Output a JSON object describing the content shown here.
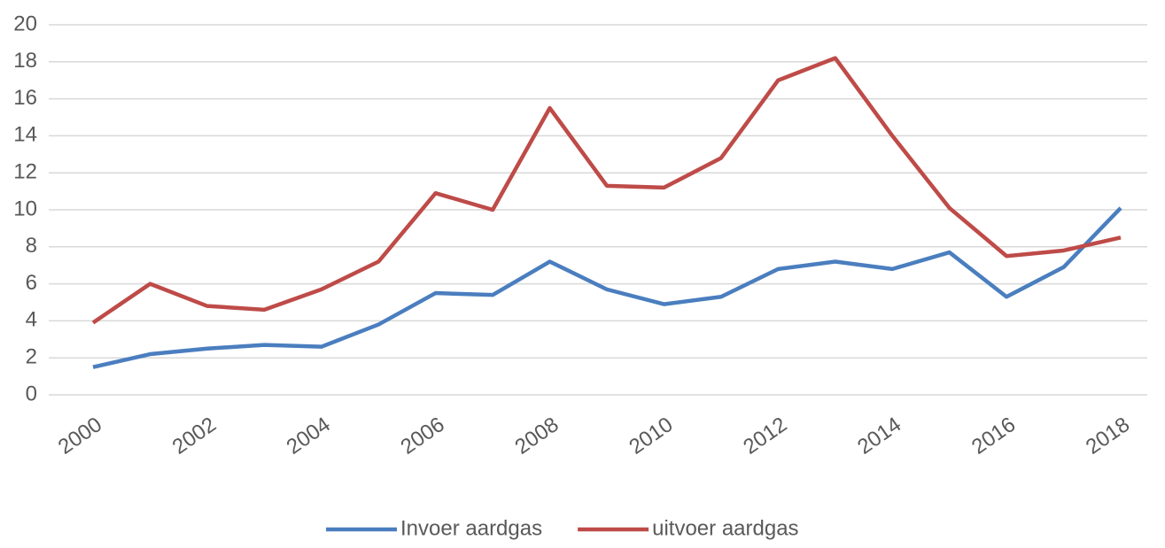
{
  "chart_data": {
    "type": "line",
    "x": [
      2000,
      2001,
      2002,
      2003,
      2004,
      2005,
      2006,
      2007,
      2008,
      2009,
      2010,
      2011,
      2012,
      2013,
      2014,
      2015,
      2016,
      2017,
      2018
    ],
    "xlim": [
      2000,
      2018
    ],
    "xticks": [
      2000,
      2002,
      2004,
      2006,
      2008,
      2010,
      2012,
      2014,
      2016,
      2018
    ],
    "ylim": [
      0,
      20
    ],
    "yticks": [
      0,
      2,
      4,
      6,
      8,
      10,
      12,
      14,
      16,
      18,
      20
    ],
    "grid": true,
    "legend": "bottom",
    "series": [
      {
        "name": "Invoer aardgas",
        "color": "#4a7ebf",
        "values": [
          1.5,
          2.2,
          2.5,
          2.7,
          2.6,
          3.8,
          5.5,
          5.4,
          7.2,
          5.7,
          4.9,
          5.3,
          6.8,
          7.2,
          6.8,
          7.7,
          5.3,
          6.9,
          10.1
        ]
      },
      {
        "name": "uitvoer aardgas",
        "color": "#be4b48",
        "values": [
          3.9,
          6.0,
          4.8,
          4.6,
          5.7,
          7.2,
          10.9,
          10.0,
          15.5,
          11.3,
          11.2,
          12.8,
          17.0,
          18.2,
          14.0,
          10.1,
          7.5,
          7.8,
          8.5
        ]
      }
    ]
  }
}
